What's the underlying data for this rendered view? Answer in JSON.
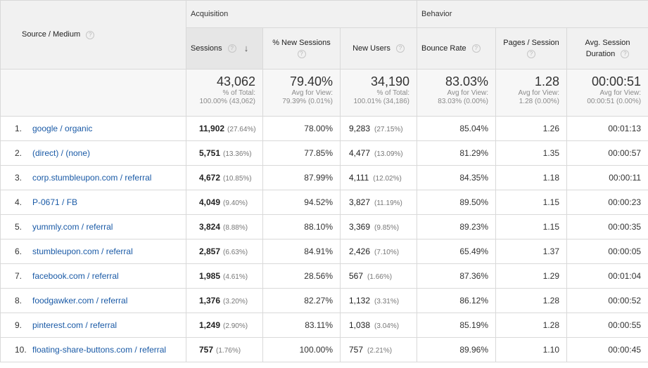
{
  "header": {
    "source_medium": "Source / Medium",
    "group_acquisition": "Acquisition",
    "group_behavior": "Behavior",
    "columns": {
      "sessions": "Sessions",
      "new_sessions": "% New Sessions",
      "new_users": "New Users",
      "bounce_rate": "Bounce Rate",
      "pages_session": "Pages / Session",
      "avg_duration_1": "Avg. Session",
      "avg_duration_2": "Duration"
    },
    "help_glyph": "?",
    "sort_glyph": "↓"
  },
  "totals": {
    "sessions": {
      "value": "43,062",
      "sub1": "% of Total:",
      "sub2": "100.00% (43,062)"
    },
    "new_sessions": {
      "value": "79.40%",
      "sub1": "Avg for View:",
      "sub2": "79.39% (0.01%)"
    },
    "new_users": {
      "value": "34,190",
      "sub1": "% of Total:",
      "sub2": "100.01% (34,186)"
    },
    "bounce_rate": {
      "value": "83.03%",
      "sub1": "Avg for View:",
      "sub2": "83.03% (0.00%)"
    },
    "pages_session": {
      "value": "1.28",
      "sub1": "Avg for View:",
      "sub2": "1.28 (0.00%)"
    },
    "avg_duration": {
      "value": "00:00:51",
      "sub1": "Avg for View:",
      "sub2": "00:00:51 (0.00%)"
    }
  },
  "rows": [
    {
      "idx": "1.",
      "source": "google / organic",
      "sessions": "11,902",
      "sessions_pct": "(27.64%)",
      "new_sessions": "78.00%",
      "new_users": "9,283",
      "new_users_pct": "(27.15%)",
      "bounce": "85.04%",
      "pages": "1.26",
      "duration": "00:01:13"
    },
    {
      "idx": "2.",
      "source": "(direct) / (none)",
      "sessions": "5,751",
      "sessions_pct": "(13.36%)",
      "new_sessions": "77.85%",
      "new_users": "4,477",
      "new_users_pct": "(13.09%)",
      "bounce": "81.29%",
      "pages": "1.35",
      "duration": "00:00:57"
    },
    {
      "idx": "3.",
      "source": "corp.stumbleupon.com / referral",
      "sessions": "4,672",
      "sessions_pct": "(10.85%)",
      "new_sessions": "87.99%",
      "new_users": "4,111",
      "new_users_pct": "(12.02%)",
      "bounce": "84.35%",
      "pages": "1.18",
      "duration": "00:00:11"
    },
    {
      "idx": "4.",
      "source": "P-0671 / FB",
      "sessions": "4,049",
      "sessions_pct": "(9.40%)",
      "new_sessions": "94.52%",
      "new_users": "3,827",
      "new_users_pct": "(11.19%)",
      "bounce": "89.50%",
      "pages": "1.15",
      "duration": "00:00:23"
    },
    {
      "idx": "5.",
      "source": "yummly.com / referral",
      "sessions": "3,824",
      "sessions_pct": "(8.88%)",
      "new_sessions": "88.10%",
      "new_users": "3,369",
      "new_users_pct": "(9.85%)",
      "bounce": "89.23%",
      "pages": "1.15",
      "duration": "00:00:35"
    },
    {
      "idx": "6.",
      "source": "stumbleupon.com / referral",
      "sessions": "2,857",
      "sessions_pct": "(6.63%)",
      "new_sessions": "84.91%",
      "new_users": "2,426",
      "new_users_pct": "(7.10%)",
      "bounce": "65.49%",
      "pages": "1.37",
      "duration": "00:00:05"
    },
    {
      "idx": "7.",
      "source": "facebook.com / referral",
      "sessions": "1,985",
      "sessions_pct": "(4.61%)",
      "new_sessions": "28.56%",
      "new_users": "567",
      "new_users_pct": "(1.66%)",
      "bounce": "87.36%",
      "pages": "1.29",
      "duration": "00:01:04"
    },
    {
      "idx": "8.",
      "source": "foodgawker.com / referral",
      "sessions": "1,376",
      "sessions_pct": "(3.20%)",
      "new_sessions": "82.27%",
      "new_users": "1,132",
      "new_users_pct": "(3.31%)",
      "bounce": "86.12%",
      "pages": "1.28",
      "duration": "00:00:52"
    },
    {
      "idx": "9.",
      "source": "pinterest.com / referral",
      "sessions": "1,249",
      "sessions_pct": "(2.90%)",
      "new_sessions": "83.11%",
      "new_users": "1,038",
      "new_users_pct": "(3.04%)",
      "bounce": "85.19%",
      "pages": "1.28",
      "duration": "00:00:55"
    },
    {
      "idx": "10.",
      "source": "floating-share-buttons.com / referral",
      "sessions": "757",
      "sessions_pct": "(1.76%)",
      "new_sessions": "100.00%",
      "new_users": "757",
      "new_users_pct": "(2.21%)",
      "bounce": "89.96%",
      "pages": "1.10",
      "duration": "00:00:45"
    }
  ]
}
